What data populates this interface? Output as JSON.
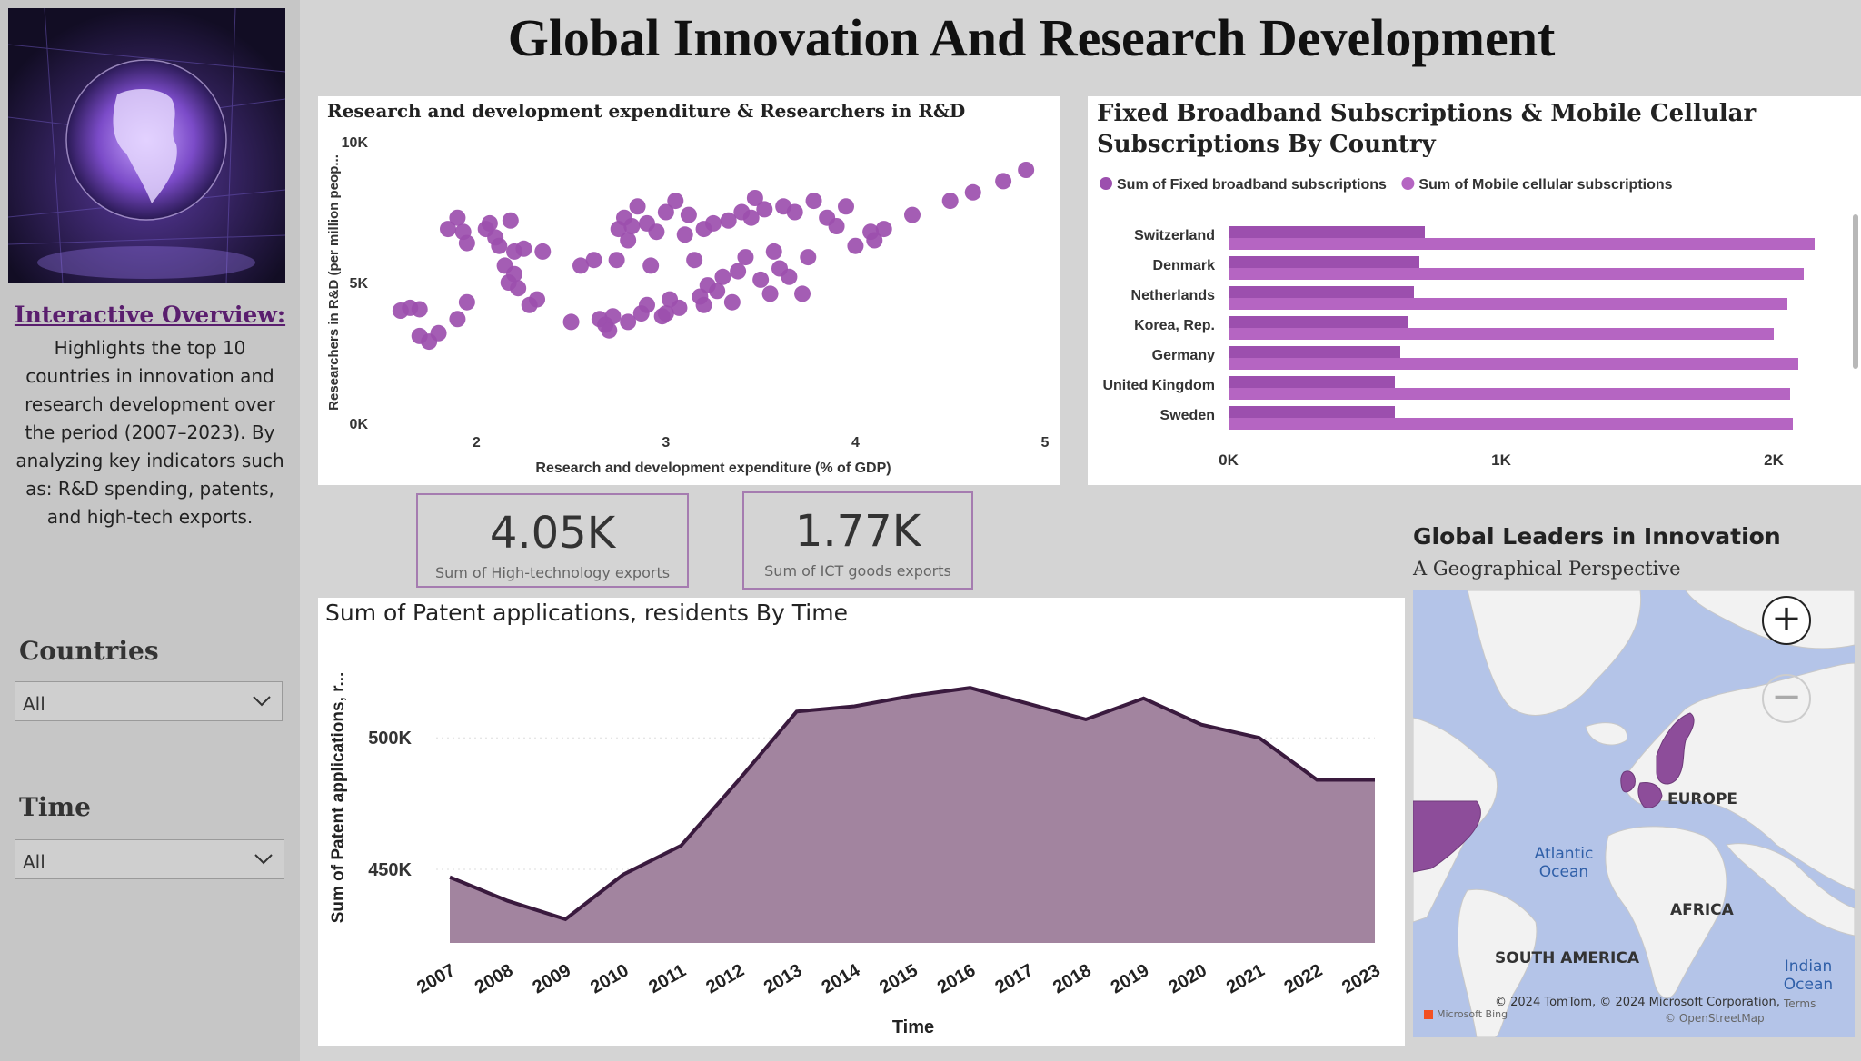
{
  "page": {
    "title": "Global Innovation And Research Development"
  },
  "sidebar": {
    "overview_title": "Interactive Overview:",
    "overview_text": "Highlights the top 10 countries in innovation and research development over the period (2007–2023). By analyzing key indicators such as: R&D spending, patents, and high-tech exports.",
    "filters": [
      {
        "label": "Countries",
        "value": "All"
      },
      {
        "label": "Time",
        "value": "All"
      }
    ]
  },
  "kpis": [
    {
      "value": "4.05K",
      "label": "Sum of High-technology exports"
    },
    {
      "value": "1.77K",
      "label": "Sum of ICT goods exports"
    }
  ],
  "colors": {
    "purple": "#9c4fae",
    "purple_light": "#b565c2",
    "area_fill": "#a2849f",
    "area_line": "#3a1a3e",
    "accent": "#5a1e6e"
  },
  "map": {
    "title": "Global Leaders in Innovation",
    "subtitle": "A Geographical Perspective",
    "labels": [
      "EUROPE",
      "AFRICA",
      "SOUTH AMERICA",
      "Atlantic Ocean",
      "Indian Ocean"
    ],
    "credit": "© 2024 TomTom, © 2024 Microsoft Corporation,",
    "osm": "© OpenStreetMap",
    "terms": "Terms",
    "bing": "Microsoft Bing",
    "zoom_in_icon": "plus-icon",
    "zoom_out_icon": "minus-icon"
  },
  "chart_data": [
    {
      "type": "scatter",
      "title": "Research and development expenditure & Researchers in R&D",
      "xlabel": "Research and development expenditure (% of GDP)",
      "ylabel": "Researchers in R&D (per million peop...",
      "xlim": [
        1.5,
        5
      ],
      "ylim": [
        0,
        10000
      ],
      "xticks": [
        "2",
        "3",
        "4",
        "5"
      ],
      "yticks": [
        "0K",
        "5K",
        "10K"
      ],
      "points": [
        [
          1.6,
          4000
        ],
        [
          1.65,
          4100
        ],
        [
          1.7,
          4050
        ],
        [
          1.7,
          3100
        ],
        [
          1.75,
          2900
        ],
        [
          1.8,
          3200
        ],
        [
          1.85,
          6900
        ],
        [
          1.9,
          7300
        ],
        [
          1.93,
          6800
        ],
        [
          1.95,
          6400
        ],
        [
          1.9,
          3700
        ],
        [
          1.95,
          4300
        ],
        [
          2.05,
          6900
        ],
        [
          2.07,
          7100
        ],
        [
          2.1,
          6600
        ],
        [
          2.12,
          6300
        ],
        [
          2.15,
          5600
        ],
        [
          2.17,
          5000
        ],
        [
          2.18,
          7200
        ],
        [
          2.2,
          6100
        ],
        [
          2.2,
          5300
        ],
        [
          2.22,
          4800
        ],
        [
          2.25,
          6200
        ],
        [
          2.28,
          4200
        ],
        [
          2.32,
          4400
        ],
        [
          2.35,
          6100
        ],
        [
          2.5,
          3600
        ],
        [
          2.55,
          5600
        ],
        [
          2.62,
          5800
        ],
        [
          2.65,
          3700
        ],
        [
          2.68,
          3500
        ],
        [
          2.72,
          3800
        ],
        [
          2.74,
          5800
        ],
        [
          2.75,
          6900
        ],
        [
          2.78,
          7300
        ],
        [
          2.8,
          6500
        ],
        [
          2.82,
          7000
        ],
        [
          2.85,
          7700
        ],
        [
          2.87,
          3900
        ],
        [
          2.9,
          7100
        ],
        [
          2.9,
          4200
        ],
        [
          2.92,
          5600
        ],
        [
          2.95,
          6800
        ],
        [
          2.98,
          3800
        ],
        [
          3.0,
          7500
        ],
        [
          3.02,
          4400
        ],
        [
          3.05,
          7900
        ],
        [
          3.07,
          4100
        ],
        [
          3.1,
          6700
        ],
        [
          3.12,
          7400
        ],
        [
          3.15,
          5800
        ],
        [
          3.18,
          4500
        ],
        [
          3.2,
          6900
        ],
        [
          3.22,
          4900
        ],
        [
          3.25,
          7100
        ],
        [
          3.27,
          4700
        ],
        [
          3.3,
          5200
        ],
        [
          3.33,
          7200
        ],
        [
          3.35,
          4300
        ],
        [
          3.38,
          5400
        ],
        [
          3.4,
          7500
        ],
        [
          3.42,
          5900
        ],
        [
          3.45,
          7300
        ],
        [
          3.47,
          8000
        ],
        [
          3.5,
          5100
        ],
        [
          3.52,
          7600
        ],
        [
          3.55,
          4600
        ],
        [
          3.57,
          6100
        ],
        [
          3.6,
          5500
        ],
        [
          3.62,
          7700
        ],
        [
          3.65,
          5200
        ],
        [
          3.68,
          7500
        ],
        [
          3.72,
          4600
        ],
        [
          3.75,
          5900
        ],
        [
          3.78,
          7900
        ],
        [
          3.85,
          7300
        ],
        [
          3.9,
          7000
        ],
        [
          3.95,
          7700
        ],
        [
          4.0,
          6300
        ],
        [
          4.08,
          6800
        ],
        [
          4.1,
          6500
        ],
        [
          4.15,
          6900
        ],
        [
          4.3,
          7400
        ],
        [
          4.5,
          7900
        ],
        [
          4.62,
          8200
        ],
        [
          4.78,
          8600
        ],
        [
          4.9,
          9000
        ],
        [
          2.7,
          3300
        ],
        [
          2.8,
          3600
        ],
        [
          3.0,
          3900
        ],
        [
          3.2,
          4200
        ]
      ]
    },
    {
      "type": "bar",
      "orientation": "horizontal",
      "title": "Fixed Broadband Subscriptions & Mobile Cellular Subscriptions By Country",
      "categories": [
        "Switzerland",
        "Denmark",
        "Netherlands",
        "Korea, Rep.",
        "Germany",
        "United Kingdom",
        "Sweden"
      ],
      "series": [
        {
          "name": "Sum of Fixed broadband subscriptions",
          "values": [
            720,
            700,
            680,
            660,
            630,
            610,
            610
          ]
        },
        {
          "name": "Sum of Mobile cellular subscriptions",
          "values": [
            2150,
            2110,
            2050,
            2000,
            2090,
            2060,
            2070
          ]
        }
      ],
      "xlim": [
        0,
        2250
      ],
      "xticks": [
        [
          "0K",
          0
        ],
        [
          "1K",
          1000
        ],
        [
          "2K",
          2000
        ]
      ],
      "legend": "top-left"
    },
    {
      "type": "area",
      "title": "Sum of Patent applications, residents By Time",
      "xlabel": "Time",
      "ylabel": "Sum of Patent applications, r...",
      "categories": [
        "2007",
        "2008",
        "2009",
        "2010",
        "2011",
        "2012",
        "2013",
        "2014",
        "2015",
        "2016",
        "2017",
        "2018",
        "2019",
        "2020",
        "2021",
        "2022",
        "2023"
      ],
      "values": [
        447000,
        438000,
        431000,
        448000,
        459000,
        484000,
        510000,
        512000,
        516000,
        519000,
        513000,
        507000,
        515000,
        505000,
        500000,
        484000,
        484000
      ],
      "ylim": [
        422000,
        536000
      ],
      "yticks": [
        [
          "450K",
          450000
        ],
        [
          "500K",
          500000
        ]
      ]
    }
  ]
}
